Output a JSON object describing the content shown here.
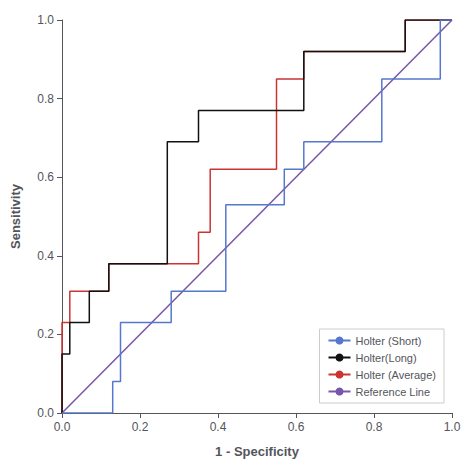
{
  "chart_data": {
    "type": "line",
    "xlabel": "1 - Specificity",
    "ylabel": "Sensitivity",
    "xlim": [
      0.0,
      1.0
    ],
    "ylim": [
      0.0,
      1.0
    ],
    "xticks": [
      {
        "value": 0.0,
        "label": "0.0"
      },
      0.2,
      0.4,
      0.6,
      0.8,
      {
        "value": 1.0,
        "label": "1.0"
      }
    ],
    "yticks": [
      {
        "value": 0.0,
        "label": "0.0"
      },
      0.2,
      0.4,
      0.6,
      0.8,
      {
        "value": 1.0,
        "label": "1.0"
      }
    ],
    "grid": false,
    "legend": "lower right",
    "series": [
      {
        "name": "Holter (Short)",
        "color": "#5577cc",
        "x": [
          0.0,
          0.13,
          0.13,
          0.15,
          0.15,
          0.28,
          0.28,
          0.42,
          0.42,
          0.57,
          0.57,
          0.62,
          0.62,
          0.82,
          0.82,
          0.97,
          0.97,
          1.0
        ],
        "values": [
          0.0,
          0.0,
          0.08,
          0.08,
          0.23,
          0.23,
          0.31,
          0.31,
          0.53,
          0.53,
          0.62,
          0.62,
          0.69,
          0.69,
          0.85,
          0.85,
          1.0,
          1.0
        ]
      },
      {
        "name": "Holter(Long)",
        "color": "#111111",
        "x": [
          0.0,
          0.0,
          0.02,
          0.02,
          0.07,
          0.07,
          0.12,
          0.12,
          0.27,
          0.27,
          0.35,
          0.35,
          0.42,
          0.42,
          0.62,
          0.62,
          0.82,
          0.82,
          0.88,
          0.88,
          0.97,
          0.97,
          1.0
        ],
        "values": [
          0.0,
          0.15,
          0.15,
          0.23,
          0.23,
          0.31,
          0.31,
          0.38,
          0.38,
          0.69,
          0.69,
          0.77,
          0.77,
          0.77,
          0.77,
          0.92,
          0.92,
          0.92,
          0.92,
          1.0,
          1.0,
          1.0,
          1.0
        ]
      },
      {
        "name": "Holter (Average)",
        "color": "#cc3333",
        "x": [
          0.0,
          0.0,
          0.02,
          0.02,
          0.07,
          0.07,
          0.12,
          0.12,
          0.27,
          0.27,
          0.35,
          0.35,
          0.38,
          0.38,
          0.42,
          0.42,
          0.55,
          0.55,
          0.62,
          0.62,
          0.82,
          0.82,
          0.88,
          0.88,
          0.97,
          0.97,
          1.0
        ],
        "values": [
          0.0,
          0.23,
          0.23,
          0.31,
          0.31,
          0.31,
          0.31,
          0.38,
          0.38,
          0.38,
          0.38,
          0.46,
          0.46,
          0.62,
          0.62,
          0.62,
          0.62,
          0.85,
          0.85,
          0.92,
          0.92,
          0.92,
          0.92,
          1.0,
          1.0,
          1.0,
          1.0
        ]
      },
      {
        "name": "Reference Line",
        "color": "#7755aa",
        "x": [
          0.0,
          1.0
        ],
        "values": [
          0.0,
          1.0
        ]
      }
    ]
  }
}
